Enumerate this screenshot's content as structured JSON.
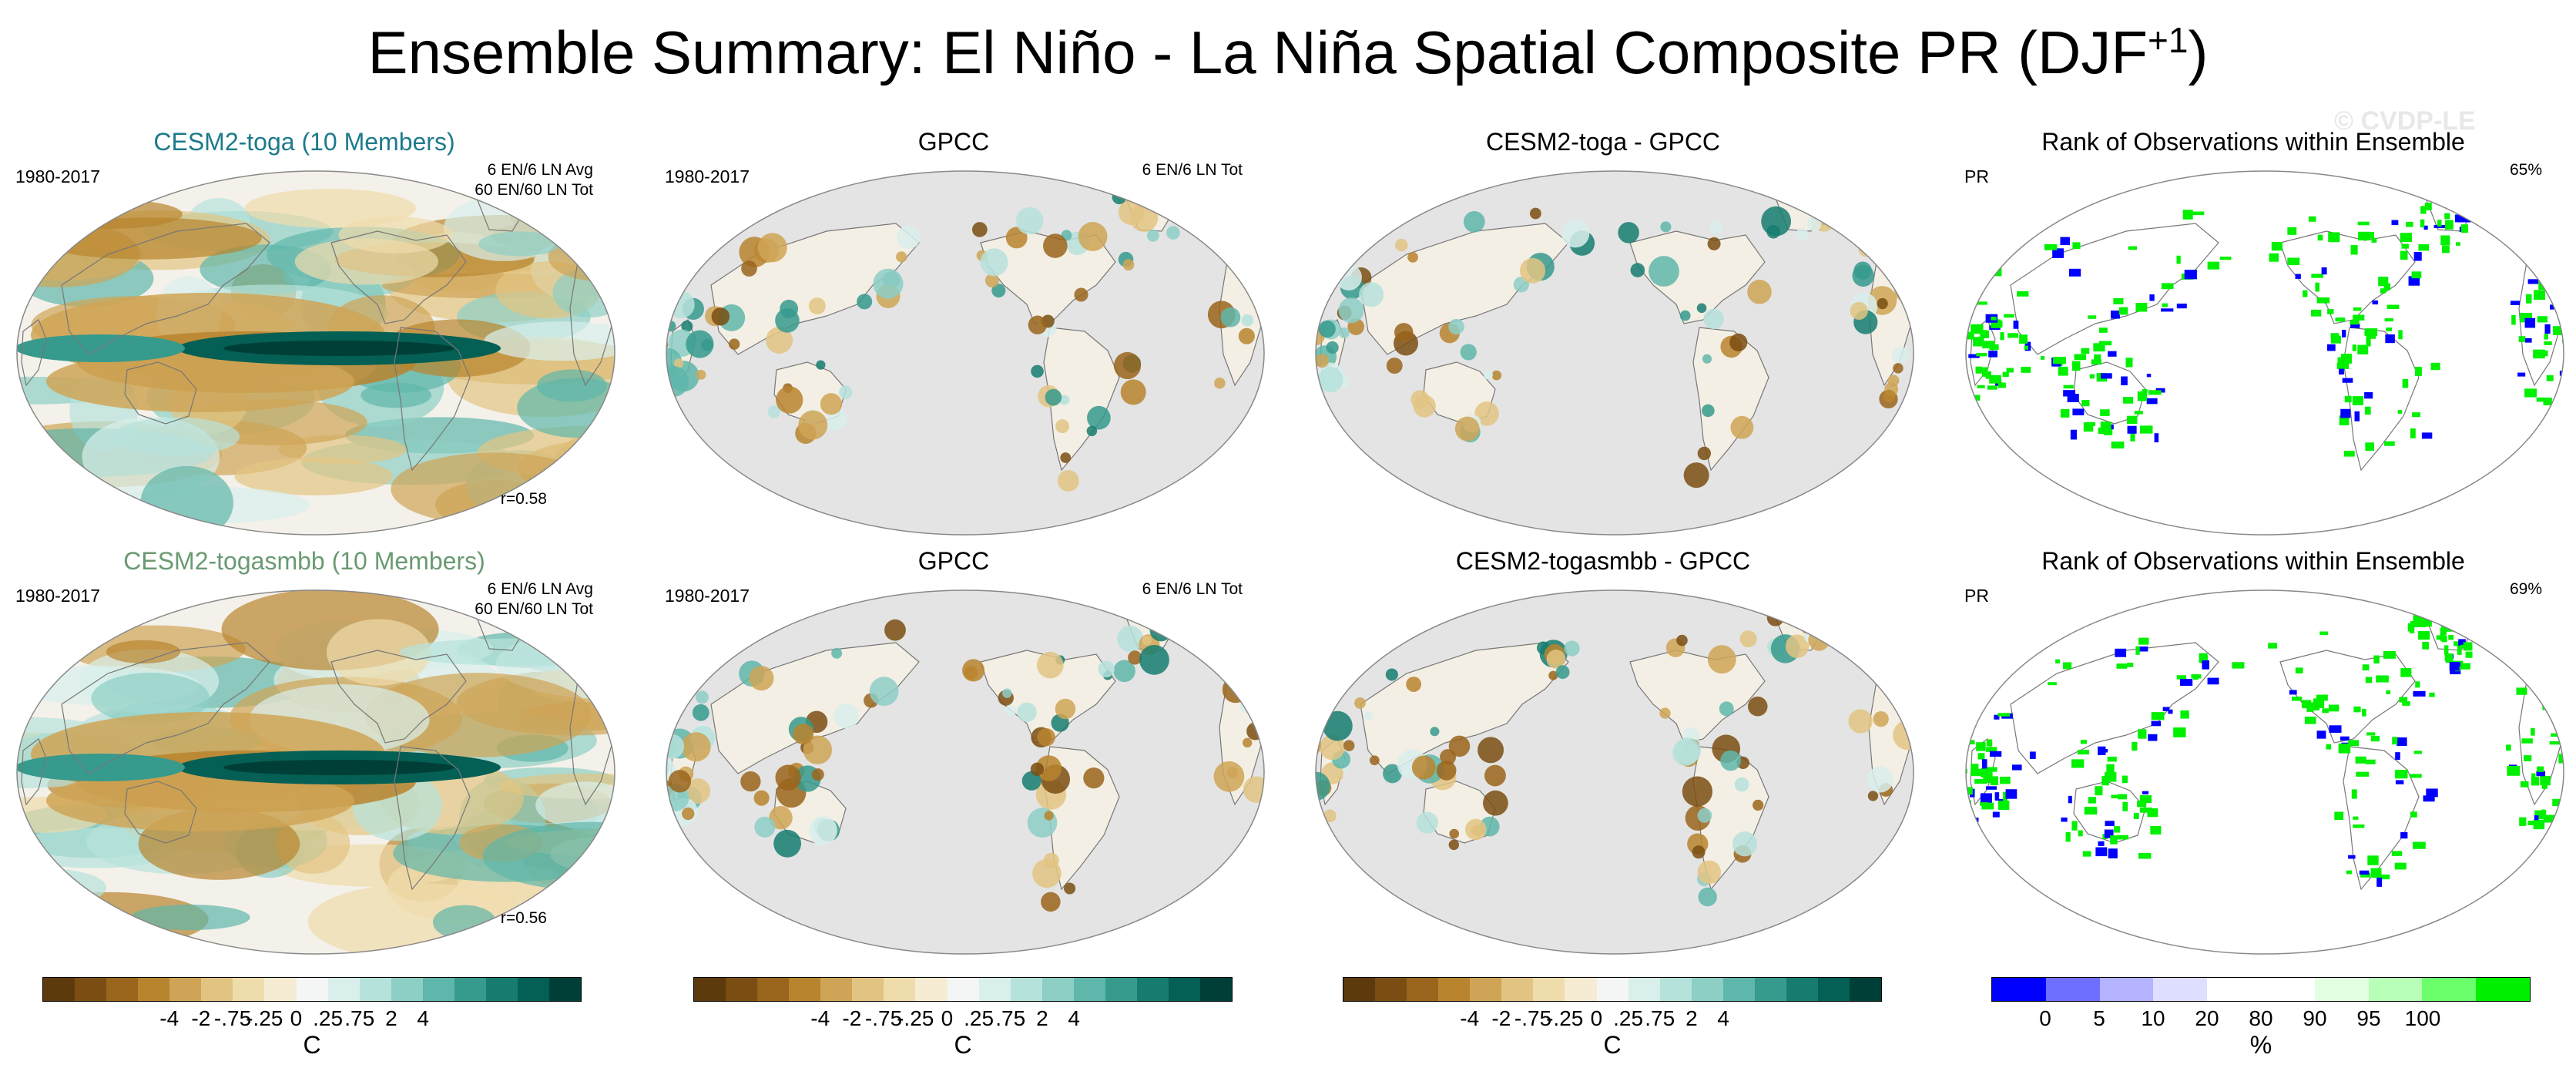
{
  "title": {
    "main": "Ensemble Summary: El Niño - La Niña Spatial Composite PR (DJF",
    "sup": "+1",
    "close": ")"
  },
  "watermark": "© CVDP-LE",
  "rows": [
    {
      "panels": [
        {
          "title": "CESM2-toga (10 Members)",
          "title_color": "#1d7a8c",
          "left": "1980-2017",
          "right": [
            "6 EN/6 LN Avg",
            "60 EN/60 LN Tot"
          ],
          "corr": "r=0.58",
          "kind": "model"
        },
        {
          "title": "GPCC",
          "left": "1980-2017",
          "right": [
            "6 EN/6 LN Tot"
          ],
          "corr": "",
          "kind": "obs"
        },
        {
          "title": "CESM2-toga - GPCC",
          "left": "",
          "right": [],
          "corr": "",
          "kind": "diff"
        },
        {
          "title": "Rank of Observations within Ensemble",
          "left": "PR",
          "right": [
            "65%"
          ],
          "corr": "",
          "kind": "rank"
        }
      ]
    },
    {
      "panels": [
        {
          "title": "CESM2-togasmbb (10 Members)",
          "title_color": "#6a9a72",
          "left": "1980-2017",
          "right": [
            "6 EN/6 LN Avg",
            "60 EN/60 LN Tot"
          ],
          "corr": "r=0.56",
          "kind": "model"
        },
        {
          "title": "GPCC",
          "left": "1980-2017",
          "right": [
            "6 EN/6 LN Tot"
          ],
          "corr": "",
          "kind": "obs"
        },
        {
          "title": "CESM2-togasmbb - GPCC",
          "left": "",
          "right": [],
          "corr": "",
          "kind": "diff"
        },
        {
          "title": "Rank of Observations within Ensemble",
          "left": "PR",
          "right": [
            "69%"
          ],
          "corr": "",
          "kind": "rank"
        }
      ]
    }
  ],
  "colorbars": [
    {
      "ticks": [
        "-4",
        "-2",
        "-.75",
        "-.25",
        "0",
        ".25",
        ".75",
        "2",
        "4"
      ],
      "units": "C",
      "colors": [
        "#5c3a0b",
        "#7a4e12",
        "#9a651c",
        "#b8842e",
        "#cfa456",
        "#e2c482",
        "#efdcab",
        "#f6ecd3",
        "#f3f6f5",
        "#d9efec",
        "#b6e2dc",
        "#8dcec5",
        "#5fb6aa",
        "#369a8d",
        "#167c70",
        "#045f54",
        "#003f37"
      ]
    },
    {
      "ticks": [
        "-4",
        "-2",
        "-.75",
        "-.25",
        "0",
        ".25",
        ".75",
        "2",
        "4"
      ],
      "units": "C",
      "colors": [
        "#5c3a0b",
        "#7a4e12",
        "#9a651c",
        "#b8842e",
        "#cfa456",
        "#e2c482",
        "#efdcab",
        "#f6ecd3",
        "#f3f6f5",
        "#d9efec",
        "#b6e2dc",
        "#8dcec5",
        "#5fb6aa",
        "#369a8d",
        "#167c70",
        "#045f54",
        "#003f37"
      ]
    },
    {
      "ticks": [
        "-4",
        "-2",
        "-.75",
        "-.25",
        "0",
        ".25",
        ".75",
        "2",
        "4"
      ],
      "units": "C",
      "colors": [
        "#5c3a0b",
        "#7a4e12",
        "#9a651c",
        "#b8842e",
        "#cfa456",
        "#e2c482",
        "#efdcab",
        "#f6ecd3",
        "#f3f6f5",
        "#d9efec",
        "#b6e2dc",
        "#8dcec5",
        "#5fb6aa",
        "#369a8d",
        "#167c70",
        "#045f54",
        "#003f37"
      ]
    },
    {
      "ticks": [
        "0",
        "5",
        "10",
        "20",
        "80",
        "90",
        "95",
        "100"
      ],
      "units": "%",
      "colors": [
        "#0000ff",
        "#6f6fff",
        "#b3b3ff",
        "#dedeff",
        "#ffffff",
        "#ffffff",
        "#e2ffe2",
        "#b8ffb8",
        "#6cff6c",
        "#00f000"
      ]
    }
  ]
}
